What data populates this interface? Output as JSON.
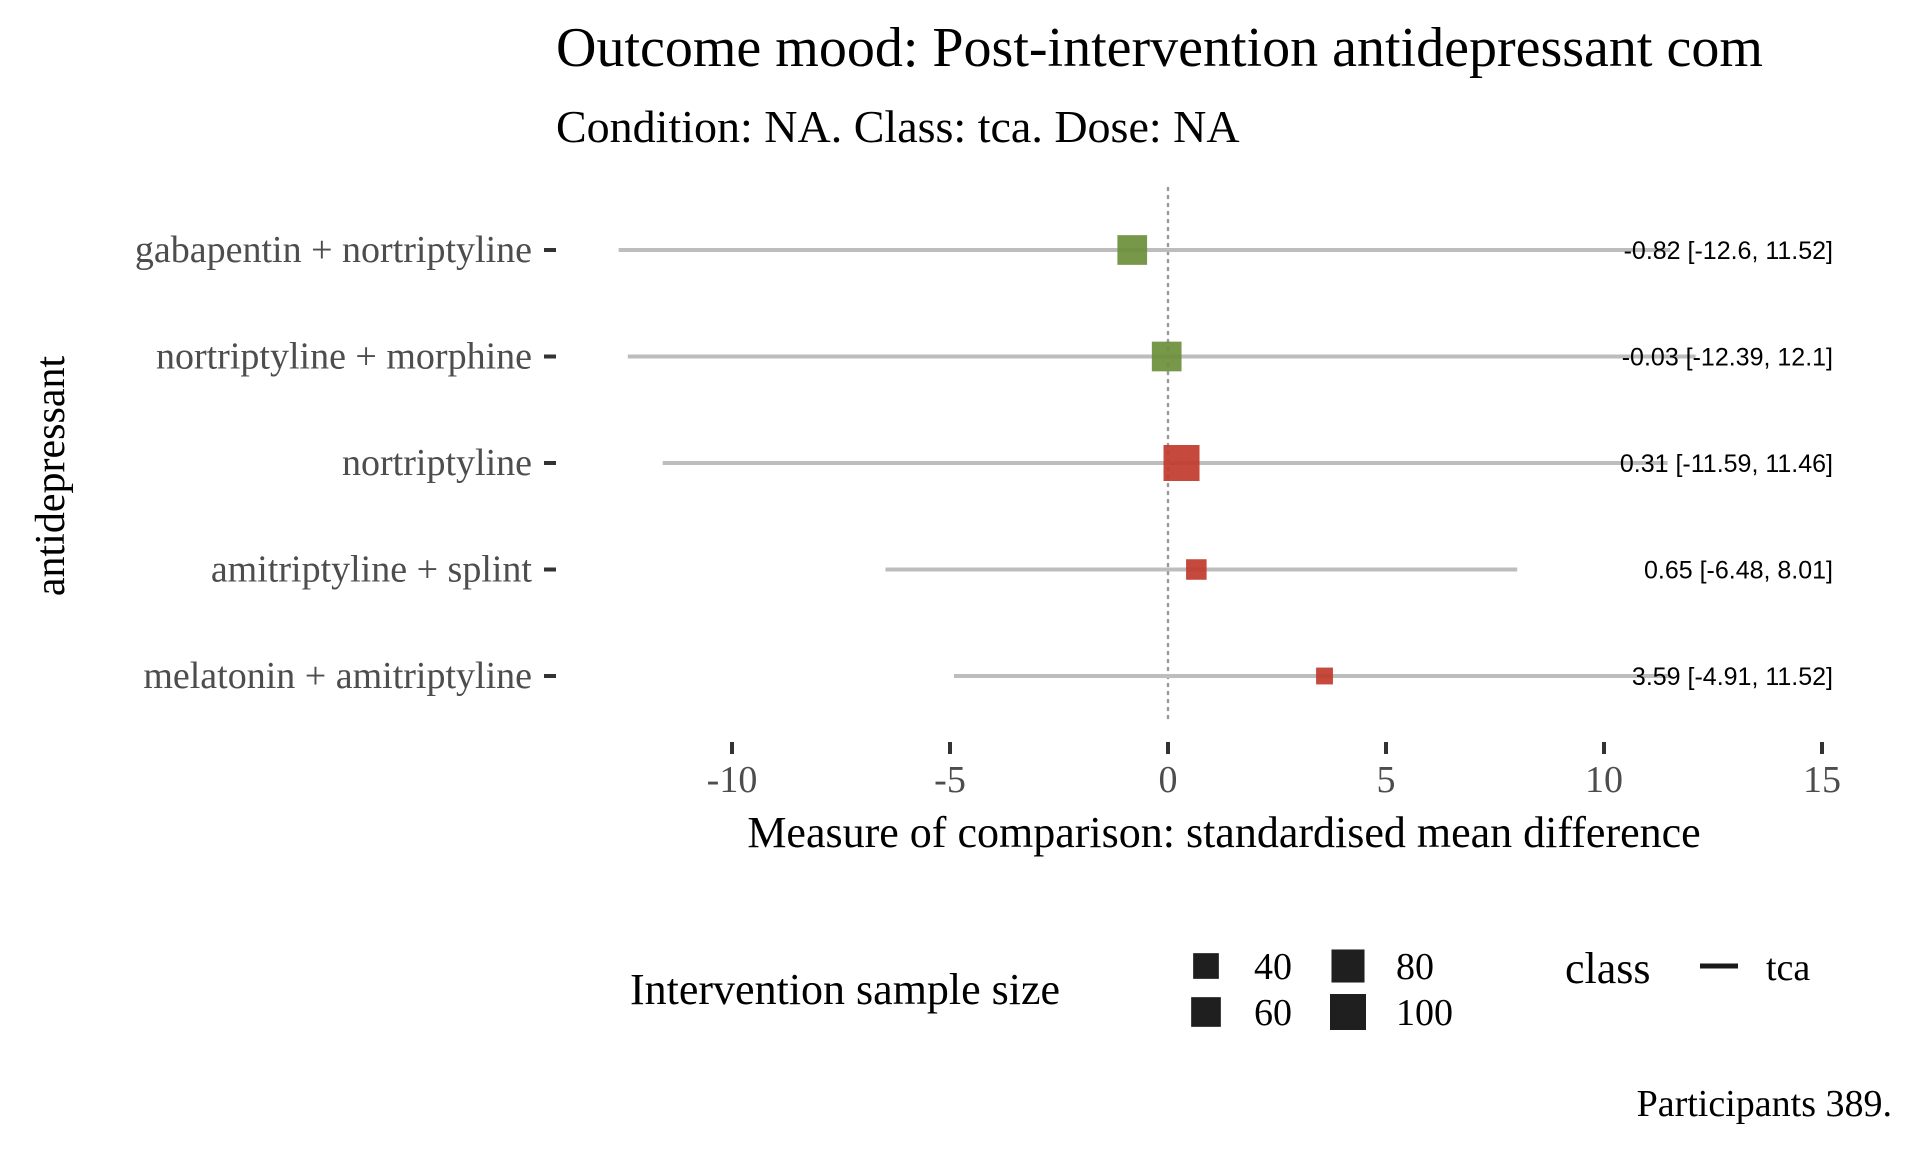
{
  "chart_data": {
    "type": "forest",
    "title": "Outcome mood: Post-intervention antidepressant com",
    "subtitle": "Condition: NA. Class: tca. Dose: NA",
    "xlabel": "Measure of comparison: standardised mean difference",
    "ylabel": "antidepressant",
    "xlim": [
      -10.5,
      15
    ],
    "xticks": [
      -10,
      -5,
      0,
      5,
      10,
      15
    ],
    "xtick_labels": [
      "-10",
      "-5",
      "0",
      "5",
      "10",
      "15"
    ],
    "reference_line": 0,
    "grid": false,
    "rows": [
      {
        "label": "gabapentin + nortriptyline",
        "estimate": -0.82,
        "ci": [
          -12.6,
          11.52
        ],
        "sample_size": 60,
        "color": "#6b8e3a",
        "ci_text": "-0.82 [-12.6, 11.52]"
      },
      {
        "label": "nortriptyline + morphine",
        "estimate": -0.03,
        "ci": [
          -12.39,
          12.1
        ],
        "sample_size": 60,
        "color": "#6b8e3a",
        "ci_text": "-0.03 [-12.39, 12.1]"
      },
      {
        "label": "nortriptyline",
        "estimate": 0.31,
        "ci": [
          -11.59,
          11.46
        ],
        "sample_size": 100,
        "color": "#c0392b",
        "ci_text": "0.31 [-11.59, 11.46]"
      },
      {
        "label": "amitriptyline + splint",
        "estimate": 0.65,
        "ci": [
          -6.48,
          8.01
        ],
        "sample_size": 20,
        "color": "#c0392b",
        "ci_text": "0.65 [-6.48, 8.01]"
      },
      {
        "label": "melatonin + amitriptyline",
        "estimate": 3.59,
        "ci": [
          -4.91,
          11.52
        ],
        "sample_size": 10,
        "color": "#c0392b",
        "ci_text": "3.59 [-4.91, 11.52]"
      }
    ],
    "legend": {
      "size_title": "Intervention sample size",
      "size_items": [
        {
          "label": "40",
          "value": 40
        },
        {
          "label": "60",
          "value": 60
        },
        {
          "label": "80",
          "value": 80
        },
        {
          "label": "100",
          "value": 100
        }
      ],
      "class_title": "class",
      "class_items": [
        {
          "label": "tca"
        }
      ],
      "position": "bottom"
    },
    "caption": "Participants 389."
  }
}
